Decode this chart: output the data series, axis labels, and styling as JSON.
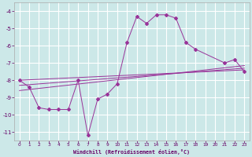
{
  "xlabel": "Windchill (Refroidissement éolien,°C)",
  "background_color": "#cce8e8",
  "grid_color": "#ffffff",
  "line_color": "#993399",
  "ylim": [
    -11.5,
    -3.5
  ],
  "xlim": [
    -0.5,
    23.5
  ],
  "yticks": [
    -11,
    -10,
    -9,
    -8,
    -7,
    -6,
    -5,
    -4
  ],
  "xticks": [
    0,
    1,
    2,
    3,
    4,
    5,
    6,
    7,
    8,
    9,
    10,
    11,
    12,
    13,
    14,
    15,
    16,
    17,
    18,
    19,
    20,
    21,
    22,
    23
  ],
  "main_series": {
    "x": [
      0,
      1,
      2,
      3,
      4,
      5,
      6,
      7,
      8,
      9,
      10,
      11,
      12,
      13,
      14,
      15,
      16,
      17,
      18,
      21,
      22,
      23
    ],
    "y": [
      -8.0,
      -8.4,
      -9.6,
      -9.7,
      -9.7,
      -9.7,
      -8.0,
      -11.2,
      -9.1,
      -8.8,
      -8.2,
      -5.8,
      -4.3,
      -4.7,
      -4.2,
      -4.2,
      -4.4,
      -5.8,
      -6.2,
      -7.0,
      -6.8,
      -7.5
    ]
  },
  "trend_lines": [
    {
      "x": [
        0,
        23
      ],
      "y": [
        -8.0,
        -7.4
      ]
    },
    {
      "x": [
        0,
        23
      ],
      "y": [
        -8.3,
        -7.3
      ]
    },
    {
      "x": [
        0,
        23
      ],
      "y": [
        -8.6,
        -7.15
      ]
    }
  ]
}
